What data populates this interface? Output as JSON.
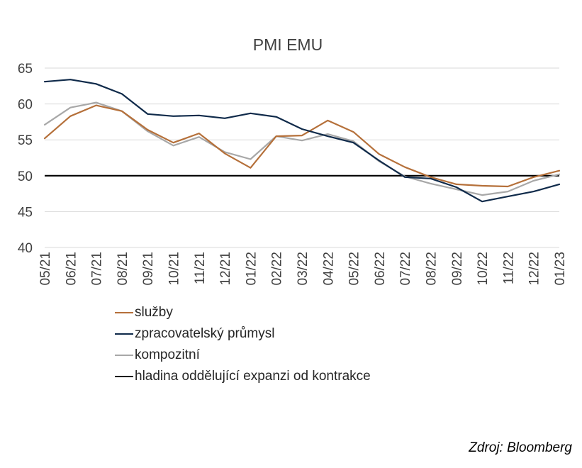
{
  "chart_data": {
    "type": "line",
    "title": "PMI EMU",
    "ylim": [
      40,
      65
    ],
    "yticks": [
      40,
      45,
      50,
      55,
      60,
      65
    ],
    "grid": true,
    "categories": [
      "05/21",
      "06/21",
      "07/21",
      "08/21",
      "09/21",
      "10/21",
      "11/21",
      "12/21",
      "01/22",
      "02/22",
      "03/22",
      "04/22",
      "05/22",
      "06/22",
      "07/22",
      "08/22",
      "09/22",
      "10/22",
      "11/22",
      "12/22",
      "01/23"
    ],
    "series": [
      {
        "name": "služby",
        "color": "#B5703A",
        "values": [
          55.2,
          58.3,
          59.8,
          59.0,
          56.4,
          54.6,
          55.9,
          53.1,
          51.1,
          55.5,
          55.6,
          57.7,
          56.1,
          53.0,
          51.2,
          49.8,
          48.8,
          48.6,
          48.5,
          49.8,
          50.7
        ]
      },
      {
        "name": "zpracovatelský průmysl",
        "color": "#0F2A4A",
        "values": [
          63.1,
          63.4,
          62.8,
          61.4,
          58.6,
          58.3,
          58.4,
          58.0,
          58.7,
          58.2,
          56.5,
          55.5,
          54.6,
          52.1,
          49.8,
          49.6,
          48.4,
          46.4,
          47.1,
          47.8,
          48.8
        ]
      },
      {
        "name": "kompozitní",
        "color": "#A8A8A8",
        "values": [
          57.1,
          59.5,
          60.2,
          59.0,
          56.2,
          54.2,
          55.4,
          53.3,
          52.3,
          55.5,
          54.9,
          55.8,
          54.8,
          52.0,
          49.9,
          48.9,
          48.1,
          47.3,
          47.8,
          49.3,
          50.2
        ]
      }
    ],
    "reference_line": {
      "name": "hladina oddělující expanzi od kontrakce",
      "value": 50,
      "color": "#000000"
    },
    "legend_position": "bottom"
  },
  "footer": {
    "source": "Zdroj: Bloomberg"
  }
}
